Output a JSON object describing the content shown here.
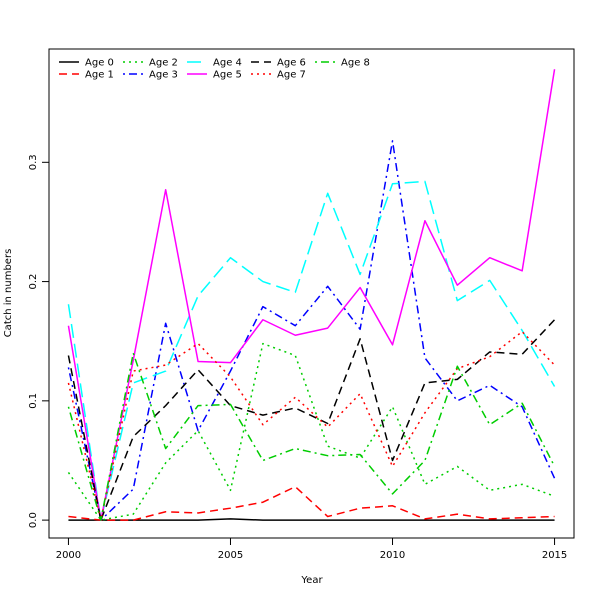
{
  "chart_data": {
    "type": "line",
    "title": "",
    "xlabel": "Year",
    "ylabel": "Catch in numbers",
    "xlim": [
      1999.4,
      2015.6
    ],
    "ylim": [
      -0.015,
      0.395
    ],
    "x_ticks": [
      2000,
      2005,
      2010,
      2015
    ],
    "y_ticks": [
      0.0,
      0.1,
      0.2,
      0.3
    ],
    "x_tick_labels": [
      "2000",
      "2005",
      "2010",
      "2015"
    ],
    "y_tick_labels": [
      "0.0",
      "0.1",
      "0.2",
      "0.3"
    ],
    "grid": false,
    "legend_position": "top-left",
    "x": [
      2000,
      2001,
      2002,
      2003,
      2004,
      2005,
      2006,
      2007,
      2008,
      2009,
      2010,
      2011,
      2012,
      2013,
      2014,
      2015
    ],
    "series": [
      {
        "name": "Age 0",
        "color": "#000000",
        "dash": "solid",
        "values": [
          0.0,
          0.0,
          0.0,
          0.0,
          0.0,
          0.001,
          0.0,
          0.0,
          0.0,
          0.0,
          0.0,
          0.0,
          0.0,
          0.0,
          0.0,
          0.0
        ]
      },
      {
        "name": "Age 1",
        "color": "#ff0000",
        "dash": "dashed",
        "values": [
          0.003,
          0.0,
          0.0,
          0.007,
          0.006,
          0.01,
          0.015,
          0.028,
          0.003,
          0.01,
          0.012,
          0.001,
          0.005,
          0.001,
          0.002,
          0.003
        ]
      },
      {
        "name": "Age 2",
        "color": "#00cd00",
        "dash": "dotted",
        "values": [
          0.04,
          0.0,
          0.005,
          0.048,
          0.075,
          0.025,
          0.148,
          0.138,
          0.062,
          0.052,
          0.095,
          0.03,
          0.045,
          0.025,
          0.03,
          0.02
        ]
      },
      {
        "name": "Age 3",
        "color": "#0000ff",
        "dash": "dotdash",
        "values": [
          0.128,
          0.0,
          0.026,
          0.165,
          0.075,
          0.125,
          0.179,
          0.163,
          0.196,
          0.16,
          0.318,
          0.136,
          0.1,
          0.113,
          0.095,
          0.035
        ]
      },
      {
        "name": "Age 4",
        "color": "#00ffff",
        "dash": "longdash",
        "values": [
          0.181,
          0.0,
          0.115,
          0.125,
          0.188,
          0.22,
          0.2,
          0.191,
          0.274,
          0.206,
          0.282,
          0.284,
          0.184,
          0.201,
          0.159,
          0.112
        ]
      },
      {
        "name": "Age 5",
        "color": "#ff00ff",
        "dash": "solid",
        "values": [
          0.163,
          0.0,
          0.134,
          0.277,
          0.133,
          0.132,
          0.168,
          0.155,
          0.161,
          0.195,
          0.147,
          0.251,
          0.197,
          0.22,
          0.209,
          0.378
        ]
      },
      {
        "name": "Age 6",
        "color": "#000000",
        "dash": "dashed",
        "values": [
          0.138,
          0.0,
          0.07,
          0.096,
          0.126,
          0.096,
          0.088,
          0.094,
          0.081,
          0.152,
          0.05,
          0.115,
          0.118,
          0.141,
          0.139,
          0.168
        ]
      },
      {
        "name": "Age 7",
        "color": "#ff0000",
        "dash": "dotted",
        "values": [
          0.115,
          0.0,
          0.125,
          0.13,
          0.148,
          0.12,
          0.08,
          0.103,
          0.078,
          0.106,
          0.045,
          0.09,
          0.127,
          0.137,
          0.158,
          0.13
        ]
      },
      {
        "name": "Age 8",
        "color": "#00cd00",
        "dash": "dotdash",
        "values": [
          0.095,
          0.0,
          0.14,
          0.06,
          0.096,
          0.097,
          0.05,
          0.06,
          0.054,
          0.055,
          0.022,
          0.05,
          0.129,
          0.08,
          0.098,
          0.045
        ]
      }
    ]
  }
}
